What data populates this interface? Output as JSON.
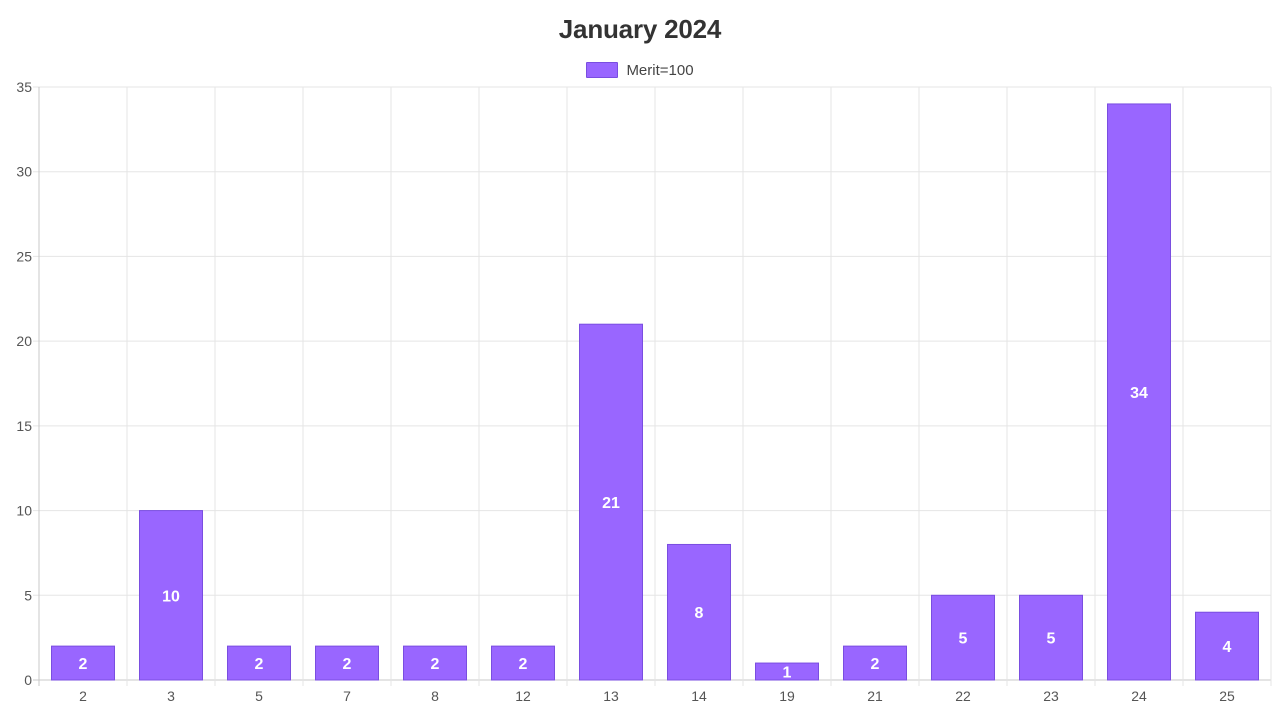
{
  "chart_data": {
    "type": "bar",
    "title": "January 2024",
    "xlabel": "",
    "ylabel": "",
    "categories": [
      "2",
      "3",
      "5",
      "7",
      "8",
      "12",
      "13",
      "14",
      "19",
      "21",
      "22",
      "23",
      "24",
      "25"
    ],
    "series": [
      {
        "name": "Merit=100",
        "values": [
          2,
          10,
          2,
          2,
          2,
          2,
          21,
          8,
          1,
          2,
          5,
          5,
          34,
          4
        ],
        "color": "#9966ff",
        "border_color": "#7a4ee0"
      }
    ],
    "ylim": [
      0,
      35
    ],
    "yticks": [
      0,
      5,
      10,
      15,
      20,
      25,
      30,
      35
    ],
    "grid": true,
    "legend_position": "top-center",
    "data_labels": true
  }
}
